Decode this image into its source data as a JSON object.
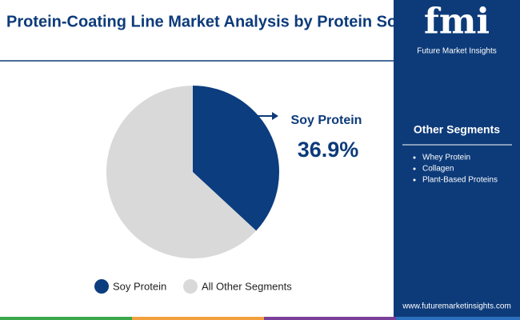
{
  "chart_data": {
    "type": "pie",
    "title": "Protein-Coating Line Market Analysis by Protein Source",
    "categories": [
      "Soy Protein",
      "All Other Segments"
    ],
    "values": [
      36.9,
      63.1
    ],
    "value_labels": [
      "36.9%",
      null
    ],
    "colors": [
      "#0b3d7f",
      "#d9d9d9"
    ],
    "legend": "bottom"
  },
  "sidebar": {
    "title": "Other Segments",
    "items": [
      "Whey Protein",
      "Collagen",
      "Plant-Based Proteins"
    ]
  },
  "brand": {
    "logo": "fmi",
    "name": "Future Market Insights",
    "url": "www.futuremarketinsights.com"
  }
}
